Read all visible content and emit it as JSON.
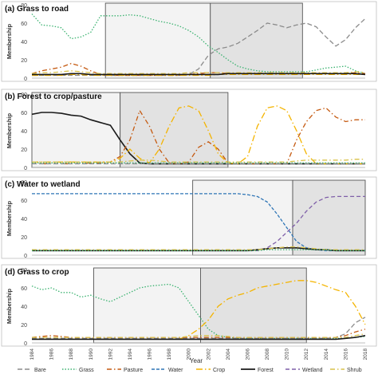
{
  "figure": {
    "x_axis_title": "Year",
    "x_ticks": [
      "1984",
      "1986",
      "1988",
      "1990",
      "1992",
      "1994",
      "1996",
      "1998",
      "2000",
      "2002",
      "2004",
      "2006",
      "2008",
      "2010",
      "2012",
      "2014",
      "2016",
      "2018"
    ],
    "legend_position": "bottom",
    "legend": [
      {
        "key": "bare",
        "label": "Bare",
        "color": "#8c8c8c",
        "dash": "6,3"
      },
      {
        "key": "grass",
        "label": "Grass",
        "color": "#3cb371",
        "dash": "1.5,2"
      },
      {
        "key": "pasture",
        "label": "Pasture",
        "color": "#c55a11",
        "dash": "6,3,1.5,3"
      },
      {
        "key": "water",
        "label": "Water",
        "color": "#2e75b6",
        "dash": "4,2"
      },
      {
        "key": "crop",
        "label": "Crop",
        "color": "#f4b400",
        "dash": "8,3,1.5,3"
      },
      {
        "key": "forest",
        "label": "Forest",
        "color": "#1a1a1a",
        "dash": ""
      },
      {
        "key": "wetland",
        "label": "Wetland",
        "color": "#7f5fa8",
        "dash": "5,3"
      },
      {
        "key": "shrub",
        "label": "Shrub",
        "color": "#d9c24a",
        "dash": "6,3,1.5,3"
      }
    ]
  },
  "chart_data": [
    {
      "type": "line",
      "title": "(a) Grass to road",
      "ylabel": "Membership",
      "xlabel": "Year",
      "ylim": [
        0,
        80
      ],
      "yticks": [
        0,
        20,
        40,
        60,
        80
      ],
      "grid": false,
      "x": [
        1984,
        1985,
        1986,
        1987,
        1988,
        1989,
        1990,
        1991,
        1992,
        1993,
        1994,
        1995,
        1996,
        1997,
        1998,
        1999,
        2000,
        2001,
        2002,
        2003,
        2004,
        2005,
        2006,
        2007,
        2008,
        2009,
        2010,
        2011,
        2012,
        2013,
        2014,
        2015,
        2016,
        2017,
        2018
      ],
      "highlight_boxes": [
        {
          "x_start": 1991.5,
          "x_end": 2002.2,
          "shade": "light"
        },
        {
          "x_start": 2002.2,
          "x_end": 2011.6,
          "shade": "dark"
        }
      ],
      "series": [
        {
          "key": "grass",
          "values": [
            70,
            58,
            57,
            55,
            43,
            45,
            50,
            68,
            68,
            68,
            69,
            68,
            65,
            62,
            60,
            57,
            52,
            45,
            35,
            28,
            20,
            13,
            10,
            8,
            7,
            7,
            7,
            7,
            7,
            9,
            11,
            12,
            13,
            8,
            5
          ]
        },
        {
          "key": "bare",
          "values": [
            3,
            3,
            3,
            3,
            3,
            3,
            3,
            3,
            3,
            3,
            3,
            3,
            3,
            3,
            3,
            3,
            4,
            10,
            25,
            32,
            34,
            38,
            45,
            52,
            60,
            58,
            55,
            58,
            60,
            56,
            45,
            35,
            42,
            55,
            65
          ]
        },
        {
          "key": "pasture",
          "values": [
            5,
            8,
            10,
            12,
            16,
            13,
            8,
            4,
            3,
            3,
            3,
            3,
            3,
            3,
            3,
            3,
            4,
            5,
            6,
            6,
            5,
            5,
            5,
            5,
            5,
            5,
            5,
            5,
            5,
            5,
            5,
            5,
            5,
            6,
            5
          ]
        },
        {
          "key": "crop",
          "values": [
            3,
            3,
            3,
            3,
            4,
            4,
            3,
            3,
            3,
            3,
            3,
            3,
            3,
            3,
            3,
            3,
            3,
            3,
            3,
            4,
            4,
            4,
            4,
            4,
            4,
            4,
            4,
            4,
            4,
            4,
            4,
            4,
            4,
            4,
            4
          ]
        },
        {
          "key": "shrub",
          "values": [
            5,
            6,
            6,
            7,
            8,
            7,
            6,
            5,
            5,
            5,
            5,
            5,
            5,
            5,
            5,
            5,
            6,
            6,
            6,
            6,
            6,
            6,
            6,
            6,
            6,
            6,
            6,
            6,
            6,
            6,
            6,
            6,
            6,
            7,
            6
          ]
        },
        {
          "key": "forest",
          "values": [
            4,
            4,
            4,
            4,
            5,
            5,
            4,
            4,
            4,
            4,
            4,
            4,
            4,
            4,
            4,
            4,
            4,
            4,
            4,
            4,
            5,
            5,
            5,
            5,
            5,
            5,
            5,
            5,
            5,
            5,
            5,
            5,
            5,
            5,
            4
          ]
        }
      ]
    },
    {
      "type": "line",
      "title": "(b) Forest to crop/pasture",
      "ylabel": "Membership",
      "xlabel": "Year",
      "ylim": [
        0,
        80
      ],
      "yticks": [
        0,
        20,
        40,
        60,
        80
      ],
      "grid": false,
      "x": [
        1984,
        1985,
        1986,
        1987,
        1988,
        1989,
        1990,
        1991,
        1992,
        1993,
        1994,
        1995,
        1996,
        1997,
        1998,
        1999,
        2000,
        2001,
        2002,
        2003,
        2004,
        2005,
        2006,
        2007,
        2008,
        2009,
        2010,
        2011,
        2012,
        2013,
        2014,
        2015,
        2016,
        2017,
        2018
      ],
      "highlight_boxes": [
        {
          "x_start": 1984,
          "x_end": 1993.0,
          "shade": "light"
        },
        {
          "x_start": 1993.0,
          "x_end": 2004.0,
          "shade": "dark"
        }
      ],
      "series": [
        {
          "key": "forest",
          "values": [
            58,
            60,
            60,
            59,
            57,
            56,
            52,
            49,
            46,
            30,
            15,
            5,
            4,
            4,
            4,
            4,
            4,
            4,
            4,
            4,
            4,
            4,
            4,
            4,
            4,
            4,
            4,
            4,
            4,
            4,
            4,
            4,
            4,
            4,
            4
          ]
        },
        {
          "key": "pasture",
          "values": [
            4,
            4,
            4,
            4,
            4,
            4,
            5,
            5,
            6,
            12,
            30,
            62,
            45,
            20,
            5,
            4,
            6,
            22,
            28,
            20,
            5,
            4,
            4,
            4,
            4,
            4,
            4,
            30,
            50,
            62,
            65,
            55,
            50,
            52,
            52
          ]
        },
        {
          "key": "crop",
          "values": [
            6,
            6,
            6,
            6,
            6,
            6,
            6,
            6,
            6,
            10,
            20,
            10,
            5,
            20,
            45,
            65,
            67,
            62,
            40,
            15,
            5,
            4,
            12,
            45,
            65,
            67,
            62,
            40,
            15,
            4,
            4,
            4,
            4,
            4,
            4
          ]
        },
        {
          "key": "shrub",
          "values": [
            6,
            6,
            6,
            6,
            6,
            6,
            6,
            6,
            6,
            6,
            7,
            8,
            8,
            7,
            6,
            6,
            6,
            6,
            6,
            6,
            6,
            6,
            6,
            6,
            6,
            6,
            6,
            7,
            8,
            8,
            8,
            8,
            8,
            9,
            9
          ]
        },
        {
          "key": "grass",
          "values": [
            5,
            5,
            5,
            5,
            5,
            5,
            5,
            5,
            5,
            5,
            5,
            5,
            5,
            5,
            5,
            5,
            5,
            5,
            5,
            5,
            5,
            5,
            5,
            5,
            5,
            5,
            5,
            5,
            5,
            5,
            5,
            5,
            5,
            5,
            5
          ]
        },
        {
          "key": "bare",
          "values": [
            4,
            4,
            4,
            4,
            4,
            4,
            4,
            4,
            4,
            4,
            4,
            4,
            4,
            4,
            4,
            4,
            4,
            4,
            4,
            4,
            4,
            4,
            4,
            4,
            4,
            4,
            4,
            4,
            4,
            4,
            4,
            4,
            4,
            4,
            4
          ]
        }
      ]
    },
    {
      "type": "line",
      "title": "(c) Water to wetland",
      "ylabel": "Membership",
      "xlabel": "Year",
      "ylim": [
        0,
        80
      ],
      "yticks": [
        0,
        20,
        40,
        60,
        80
      ],
      "grid": false,
      "x": [
        1984,
        1985,
        1986,
        1987,
        1988,
        1989,
        1990,
        1991,
        1992,
        1993,
        1994,
        1995,
        1996,
        1997,
        1998,
        1999,
        2000,
        2001,
        2002,
        2003,
        2004,
        2005,
        2006,
        2007,
        2008,
        2009,
        2010,
        2011,
        2012,
        2013,
        2014,
        2015,
        2016,
        2017,
        2018
      ],
      "highlight_boxes": [
        {
          "x_start": 2000.4,
          "x_end": 2010.6,
          "shade": "light"
        },
        {
          "x_start": 2010.6,
          "x_end": 2018,
          "shade": "dark"
        }
      ],
      "series": [
        {
          "key": "water",
          "values": [
            67,
            67,
            67,
            67,
            67,
            67,
            67,
            67,
            67,
            67,
            67,
            67,
            67,
            67,
            67,
            67,
            67,
            67,
            67,
            67,
            67,
            67,
            66,
            64,
            58,
            45,
            30,
            15,
            8,
            6,
            5,
            5,
            5,
            5,
            5
          ]
        },
        {
          "key": "wetland",
          "values": [
            5,
            5,
            5,
            5,
            5,
            5,
            5,
            5,
            5,
            5,
            5,
            5,
            5,
            5,
            5,
            5,
            5,
            5,
            5,
            5,
            5,
            5,
            5,
            5,
            8,
            15,
            25,
            35,
            48,
            58,
            63,
            64,
            64,
            64,
            64
          ]
        },
        {
          "key": "forest",
          "values": [
            5,
            5,
            5,
            5,
            5,
            5,
            5,
            5,
            5,
            5,
            5,
            5,
            5,
            5,
            5,
            5,
            5,
            5,
            5,
            5,
            5,
            5,
            5,
            6,
            7,
            8,
            8,
            8,
            7,
            6,
            6,
            5,
            5,
            5,
            5
          ]
        },
        {
          "key": "shrub",
          "values": [
            6,
            6,
            6,
            6,
            6,
            6,
            6,
            6,
            6,
            6,
            6,
            6,
            6,
            6,
            6,
            6,
            6,
            6,
            6,
            6,
            6,
            6,
            6,
            6,
            7,
            8,
            9,
            9,
            8,
            7,
            6,
            6,
            6,
            6,
            6
          ]
        },
        {
          "key": "grass",
          "values": [
            5,
            5,
            5,
            5,
            5,
            5,
            5,
            5,
            5,
            5,
            5,
            5,
            5,
            5,
            5,
            5,
            5,
            5,
            5,
            5,
            5,
            5,
            5,
            5,
            6,
            6,
            6,
            6,
            6,
            6,
            6,
            5,
            5,
            5,
            5
          ]
        }
      ]
    },
    {
      "type": "line",
      "title": "(d) Grass to crop",
      "ylabel": "Membership",
      "xlabel": "Year",
      "ylim": [
        0,
        80
      ],
      "yticks": [
        0,
        20,
        40,
        60,
        80
      ],
      "grid": false,
      "x": [
        1984,
        1985,
        1986,
        1987,
        1988,
        1989,
        1990,
        1991,
        1992,
        1993,
        1994,
        1995,
        1996,
        1997,
        1998,
        1999,
        2000,
        2001,
        2002,
        2003,
        2004,
        2005,
        2006,
        2007,
        2008,
        2009,
        2010,
        2011,
        2012,
        2013,
        2014,
        2015,
        2016,
        2017,
        2018
      ],
      "highlight_boxes": [
        {
          "x_start": 1990.3,
          "x_end": 2001.2,
          "shade": "light"
        },
        {
          "x_start": 2001.2,
          "x_end": 2012.0,
          "shade": "dark"
        }
      ],
      "series": [
        {
          "key": "grass",
          "values": [
            62,
            58,
            60,
            55,
            55,
            50,
            52,
            48,
            45,
            50,
            55,
            60,
            62,
            63,
            64,
            60,
            45,
            30,
            15,
            8,
            6,
            5,
            5,
            5,
            5,
            5,
            5,
            5,
            5,
            5,
            5,
            5,
            5,
            6,
            7
          ]
        },
        {
          "key": "crop",
          "values": [
            4,
            4,
            4,
            4,
            4,
            4,
            4,
            4,
            4,
            4,
            4,
            4,
            4,
            4,
            4,
            4,
            8,
            15,
            25,
            40,
            48,
            52,
            55,
            60,
            62,
            64,
            66,
            68,
            68,
            66,
            62,
            58,
            55,
            40,
            20
          ]
        },
        {
          "key": "bare",
          "values": [
            5,
            5,
            5,
            5,
            5,
            5,
            5,
            5,
            5,
            5,
            5,
            5,
            5,
            5,
            5,
            5,
            5,
            5,
            5,
            5,
            5,
            5,
            5,
            5,
            5,
            5,
            5,
            5,
            5,
            5,
            5,
            6,
            10,
            22,
            28
          ]
        },
        {
          "key": "pasture",
          "values": [
            6,
            7,
            8,
            7,
            6,
            6,
            6,
            6,
            6,
            6,
            6,
            6,
            6,
            6,
            6,
            6,
            6,
            6,
            6,
            6,
            6,
            6,
            6,
            6,
            6,
            6,
            6,
            6,
            6,
            6,
            6,
            6,
            8,
            12,
            15
          ]
        },
        {
          "key": "shrub",
          "values": [
            6,
            6,
            6,
            6,
            6,
            6,
            6,
            6,
            6,
            6,
            6,
            6,
            6,
            6,
            6,
            6,
            7,
            8,
            8,
            8,
            7,
            6,
            6,
            6,
            6,
            6,
            6,
            6,
            6,
            6,
            6,
            6,
            6,
            8,
            10
          ]
        },
        {
          "key": "forest",
          "values": [
            4,
            4,
            4,
            4,
            4,
            4,
            4,
            4,
            4,
            4,
            4,
            4,
            4,
            4,
            4,
            4,
            4,
            4,
            4,
            4,
            4,
            4,
            4,
            4,
            4,
            4,
            4,
            4,
            4,
            4,
            4,
            4,
            5,
            6,
            8
          ]
        }
      ]
    }
  ]
}
